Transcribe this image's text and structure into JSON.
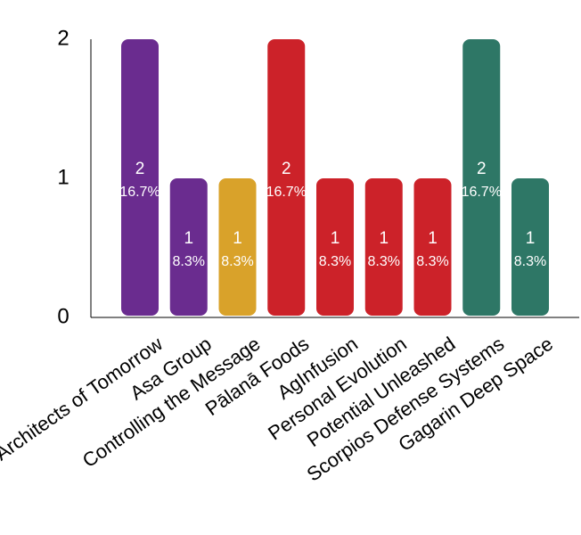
{
  "chart_data": {
    "type": "bar",
    "categories": [
      "Architects of Tomorrow",
      "Asa Group",
      "Controlling the Message",
      "Pālanā Foods",
      "AgInfusion",
      "Personal Evolution",
      "Potential Unleashed",
      "Scorpios Defense Systems",
      "Gagarin Deep Space"
    ],
    "values": [
      2,
      1,
      1,
      2,
      1,
      1,
      1,
      2,
      1
    ],
    "percent_labels": [
      "16.7%",
      "8.3%",
      "8.3%",
      "16.7%",
      "8.3%",
      "8.3%",
      "8.3%",
      "16.7%",
      "8.3%"
    ],
    "bar_colors": [
      "#6a2c8f",
      "#6a2c8f",
      "#d9a22a",
      "#cc2229",
      "#cc2229",
      "#cc2229",
      "#cc2229",
      "#2e7766",
      "#2e7766"
    ],
    "ylim": [
      0,
      2
    ],
    "yticks": [
      "0",
      "1",
      "2"
    ],
    "grid": false,
    "legend": "none"
  }
}
